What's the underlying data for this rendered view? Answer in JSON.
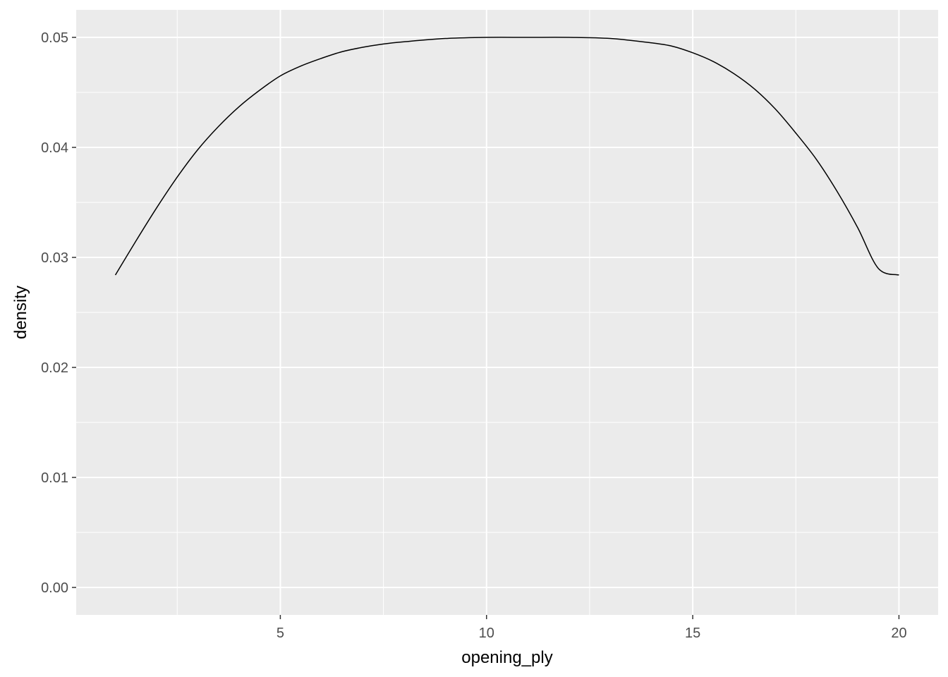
{
  "chart_data": {
    "type": "line",
    "title": "",
    "xlabel": "opening_ply",
    "ylabel": "density",
    "xlim": [
      0.05,
      20.95
    ],
    "ylim": [
      -0.0025,
      0.0525
    ],
    "x_ticks": [
      {
        "value": 5,
        "label": "5"
      },
      {
        "value": 10,
        "label": "10"
      },
      {
        "value": 15,
        "label": "15"
      },
      {
        "value": 20,
        "label": "20"
      }
    ],
    "x_minor_ticks": [
      2.5,
      7.5,
      12.5,
      17.5
    ],
    "y_ticks": [
      {
        "value": 0.0,
        "label": "0.00"
      },
      {
        "value": 0.01,
        "label": "0.01"
      },
      {
        "value": 0.02,
        "label": "0.02"
      },
      {
        "value": 0.03,
        "label": "0.03"
      },
      {
        "value": 0.04,
        "label": "0.04"
      },
      {
        "value": 0.05,
        "label": "0.05"
      }
    ],
    "y_minor_ticks": [
      0.005,
      0.015,
      0.025,
      0.035,
      0.045
    ],
    "grid": true,
    "legend": "none",
    "colors": {
      "panel": "#ebebeb",
      "grid": "#ffffff",
      "line": "#000000"
    },
    "series": [
      {
        "x": [
          1,
          1.5,
          2,
          2.5,
          3,
          3.5,
          4,
          4.5,
          5,
          5.5,
          6,
          6.5,
          7,
          7.5,
          8,
          9,
          10,
          11,
          12,
          13,
          14,
          14.5,
          15,
          15.5,
          16,
          16.5,
          17,
          17.5,
          18,
          18.5,
          19,
          19.5,
          20
        ],
        "y": [
          0.0284,
          0.0315,
          0.0345,
          0.0373,
          0.0398,
          0.0419,
          0.0437,
          0.0452,
          0.0465,
          0.0474,
          0.0481,
          0.0487,
          0.0491,
          0.0494,
          0.0496,
          0.0499,
          0.05,
          0.05,
          0.05,
          0.0499,
          0.0495,
          0.0492,
          0.0486,
          0.0478,
          0.0467,
          0.0453,
          0.0435,
          0.0413,
          0.0389,
          0.036,
          0.0327,
          0.029,
          0.0284
        ]
      }
    ]
  }
}
